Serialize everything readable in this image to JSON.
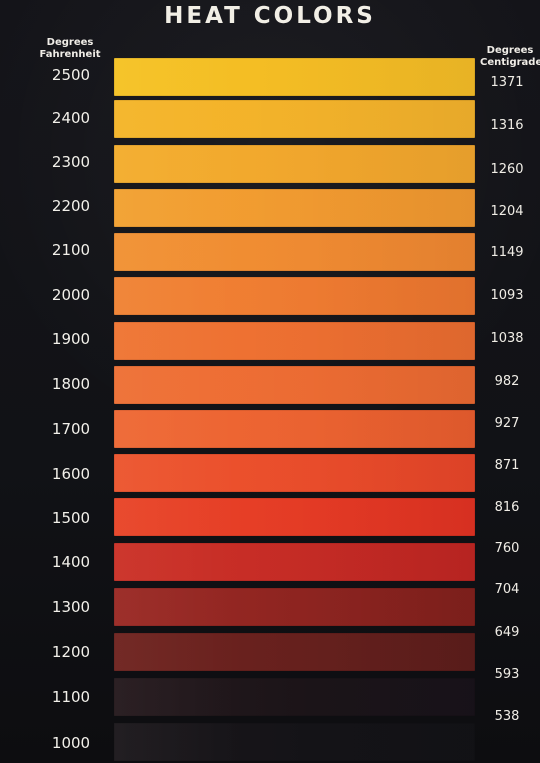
{
  "title": "HEAT COLORS",
  "left_heading": {
    "line1": "Degrees",
    "line2": "Fahrenheit"
  },
  "right_heading": {
    "line1": "Degrees",
    "line2": "Centigrade"
  },
  "scale": [
    {
      "f": "2500",
      "c": "1371",
      "color": "#f4bc24"
    },
    {
      "f": "2400",
      "c": "1316",
      "color": "#f3b22a"
    },
    {
      "f": "2300",
      "c": "1260",
      "color": "#f2a72d"
    },
    {
      "f": "2200",
      "c": "1204",
      "color": "#f19a30"
    },
    {
      "f": "2100",
      "c": "1149",
      "color": "#f08b32"
    },
    {
      "f": "2000",
      "c": "1093",
      "color": "#ef7b31"
    },
    {
      "f": "1900",
      "c": "1038",
      "color": "#ed6f31"
    },
    {
      "f": "1800",
      "c": "982",
      "color": "#ed6c33"
    },
    {
      "f": "1700",
      "c": "927",
      "color": "#ec6331"
    },
    {
      "f": "1600",
      "c": "871",
      "color": "#ea4d2b"
    },
    {
      "f": "1500",
      "c": "816",
      "color": "#e53b25"
    },
    {
      "f": "1400",
      "c": "760",
      "color": "#c52b25"
    },
    {
      "f": "1300",
      "c": "704",
      "color": "#8e2420"
    },
    {
      "f": "1200",
      "c": "649",
      "color": "#66201d"
    },
    {
      "f": "1100",
      "c": "593",
      "color": "#1b1418"
    },
    {
      "f": "1000",
      "c": "538",
      "color": "#141317"
    }
  ]
}
